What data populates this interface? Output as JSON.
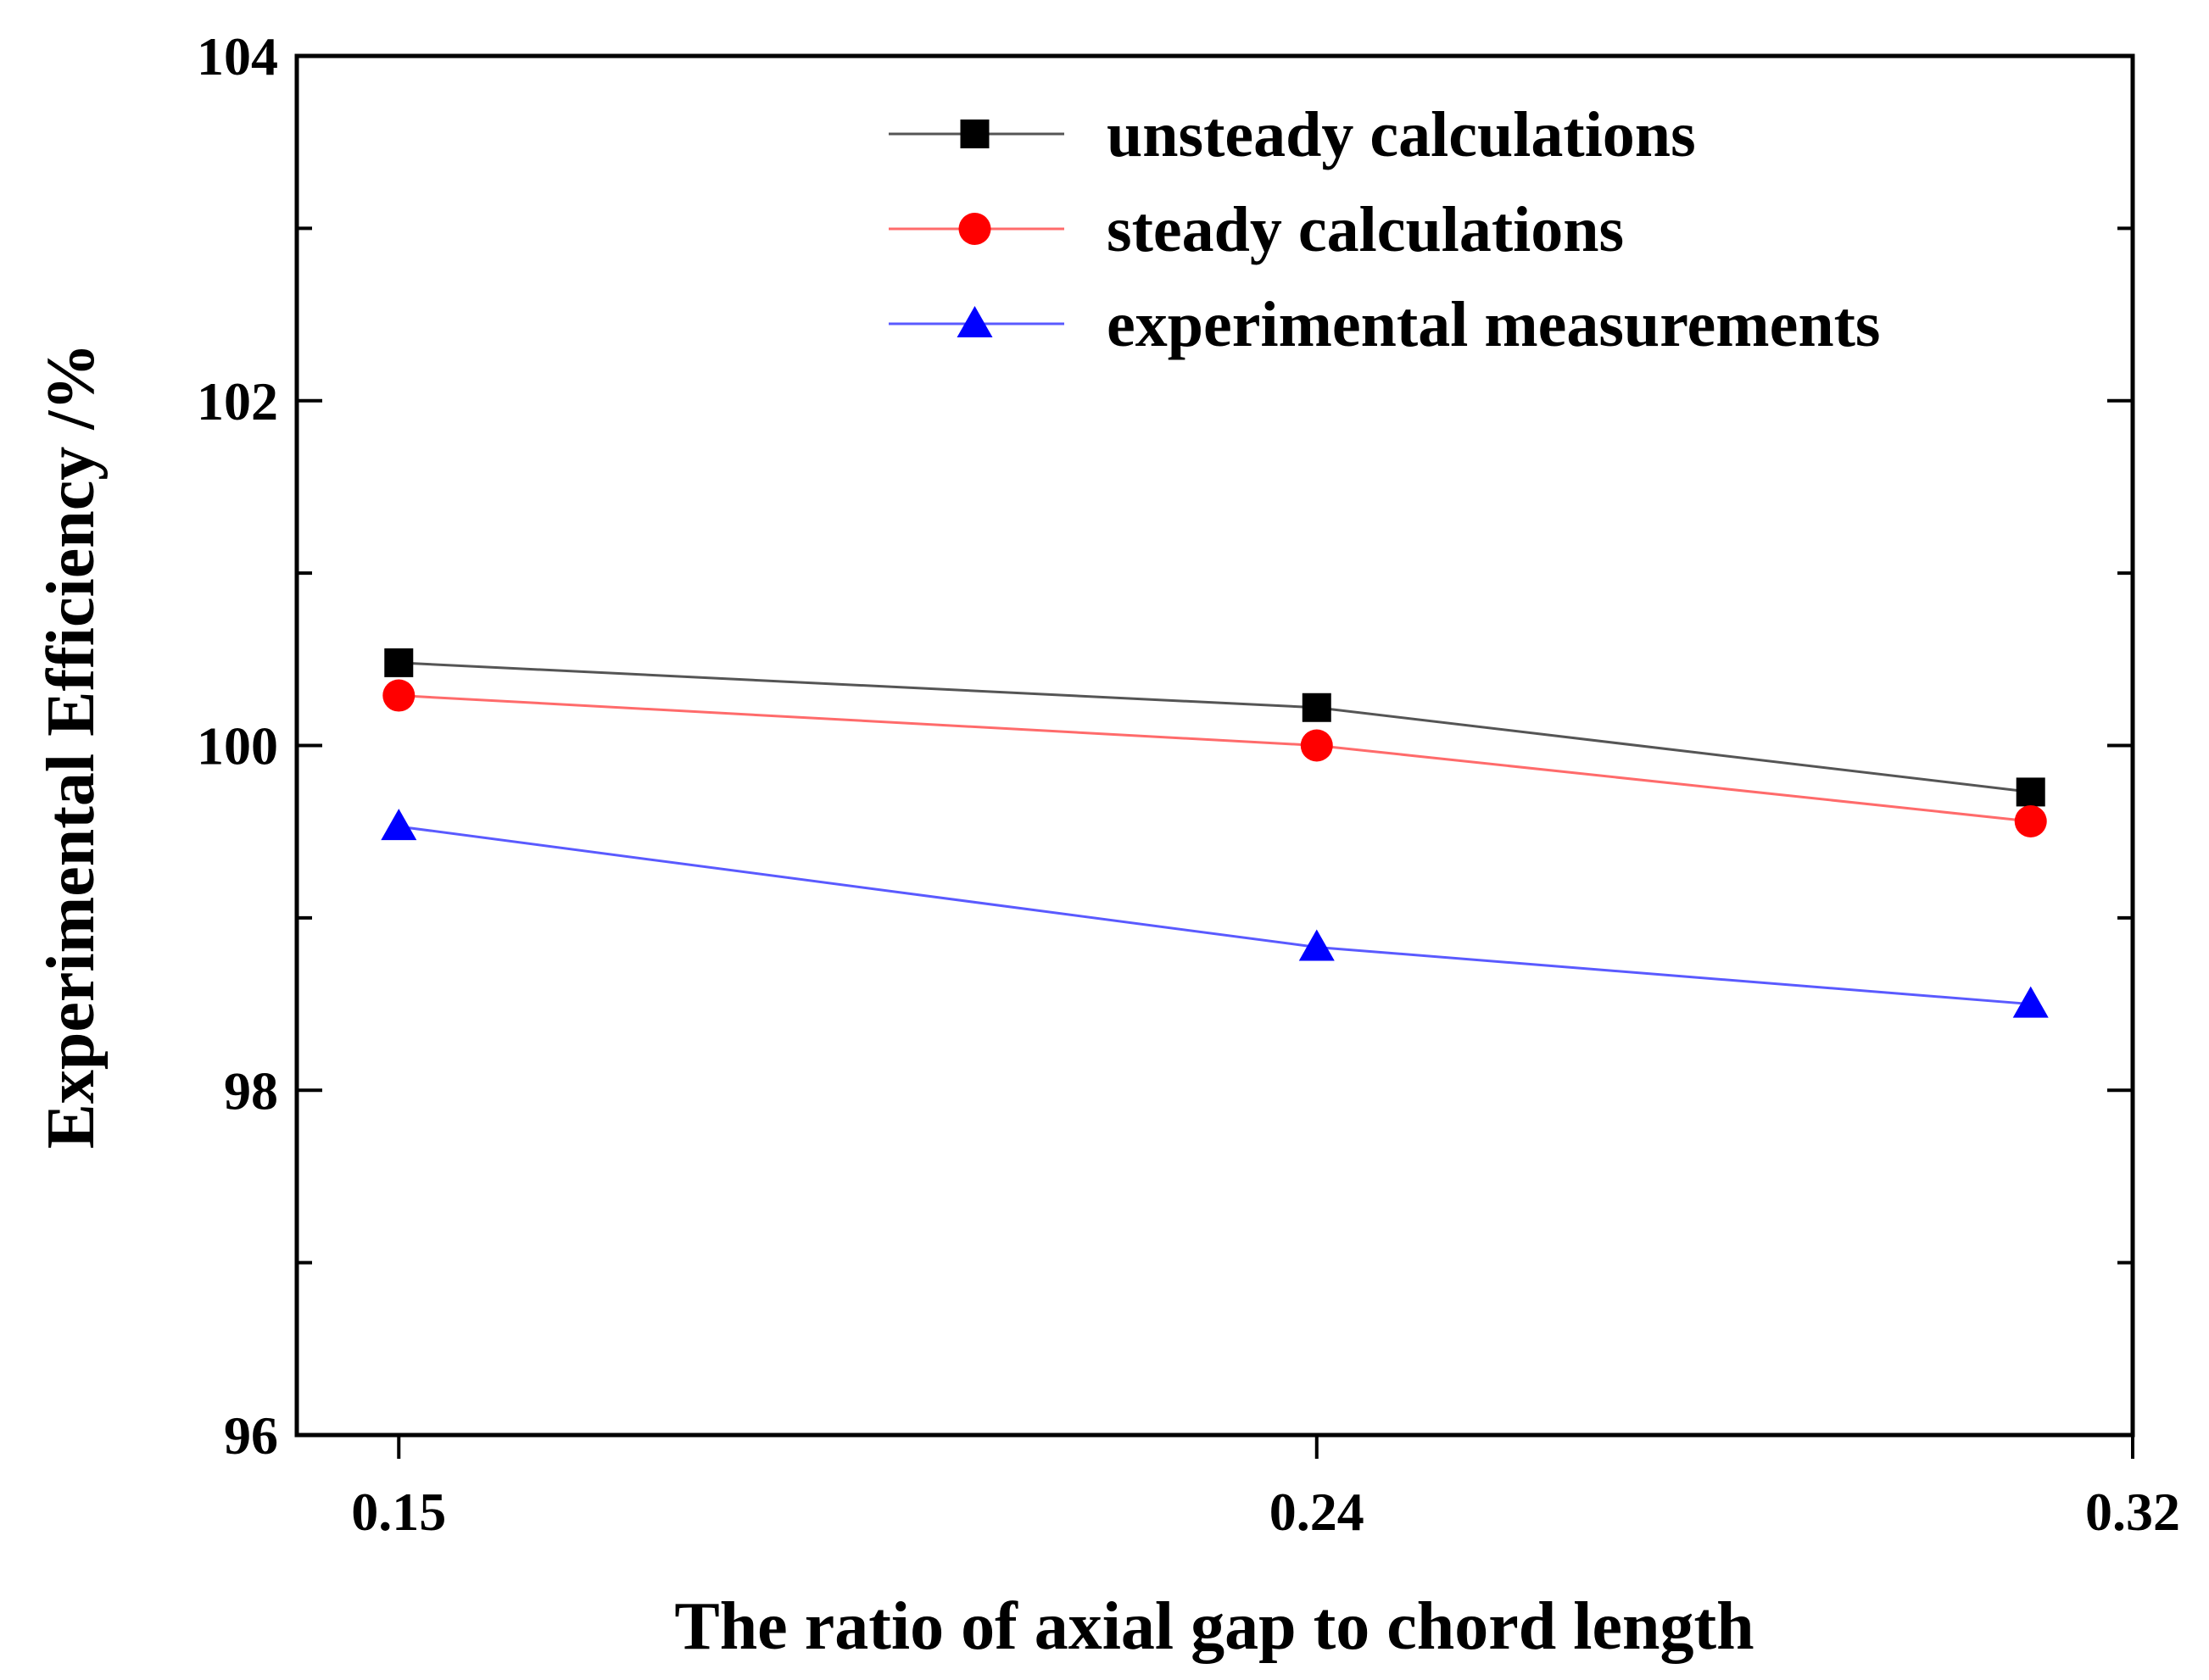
{
  "chart_data": {
    "type": "line",
    "title": "",
    "xlabel": "The ratio of axial gap to chord length",
    "ylabel": "Experimental Efficiency /%",
    "x_tick_labels": [
      "0.15",
      "0.24",
      "0.32"
    ],
    "y_tick_labels": [
      "96",
      "98",
      "100",
      "102",
      "104"
    ],
    "y_ticks": [
      96,
      98,
      100,
      102,
      104
    ],
    "ylim": [
      96,
      104
    ],
    "xlim": [
      0.14,
      0.32
    ],
    "x": [
      0.15,
      0.24,
      0.31
    ],
    "legend_position": "top-right",
    "grid": false,
    "series": [
      {
        "name": "unsteady calculations",
        "marker": "square",
        "color": "#000000",
        "line_color": "#555555",
        "values": [
          100.48,
          100.22,
          99.73
        ]
      },
      {
        "name": "steady calculations",
        "marker": "circle",
        "color": "#ff0000",
        "line_color": "#ff6b6b",
        "values": [
          100.29,
          100.0,
          99.56
        ]
      },
      {
        "name": "experimental measurements",
        "marker": "triangle",
        "color": "#0000ff",
        "line_color": "#5a5aff",
        "values": [
          99.53,
          98.83,
          98.5
        ]
      }
    ]
  }
}
